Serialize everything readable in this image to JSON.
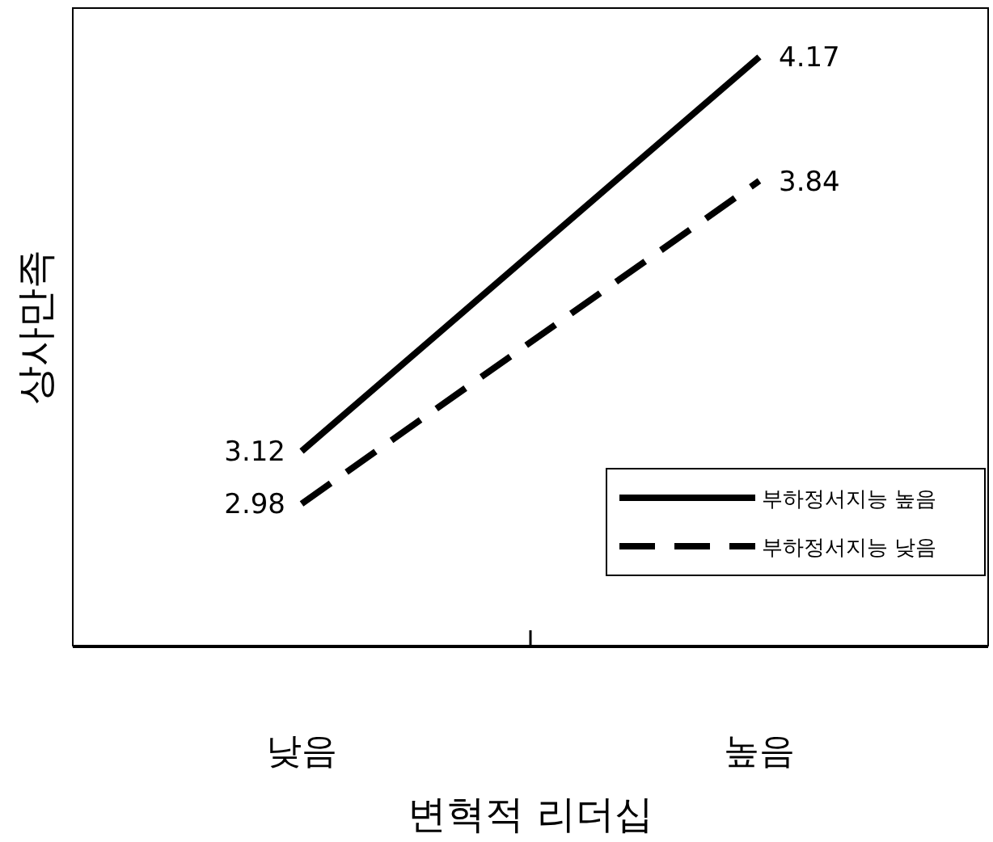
{
  "chart_data": {
    "type": "line",
    "xlabel": "변혁적 리더십",
    "ylabel": "상사만족",
    "categories": [
      "낮음",
      "높음"
    ],
    "series": [
      {
        "name": "부하정서지능 높음",
        "color": "#000000",
        "line_style": "solid",
        "values": [
          3.12,
          4.17
        ]
      },
      {
        "name": "부하정서지능 낮음",
        "color": "#000000",
        "line_style": "dashed",
        "values": [
          2.98,
          3.84
        ]
      }
    ],
    "ylim": [
      2.6,
      4.3
    ],
    "tick_labels": "x",
    "data_labels": true,
    "legend": "bottom right",
    "marker": "none"
  }
}
